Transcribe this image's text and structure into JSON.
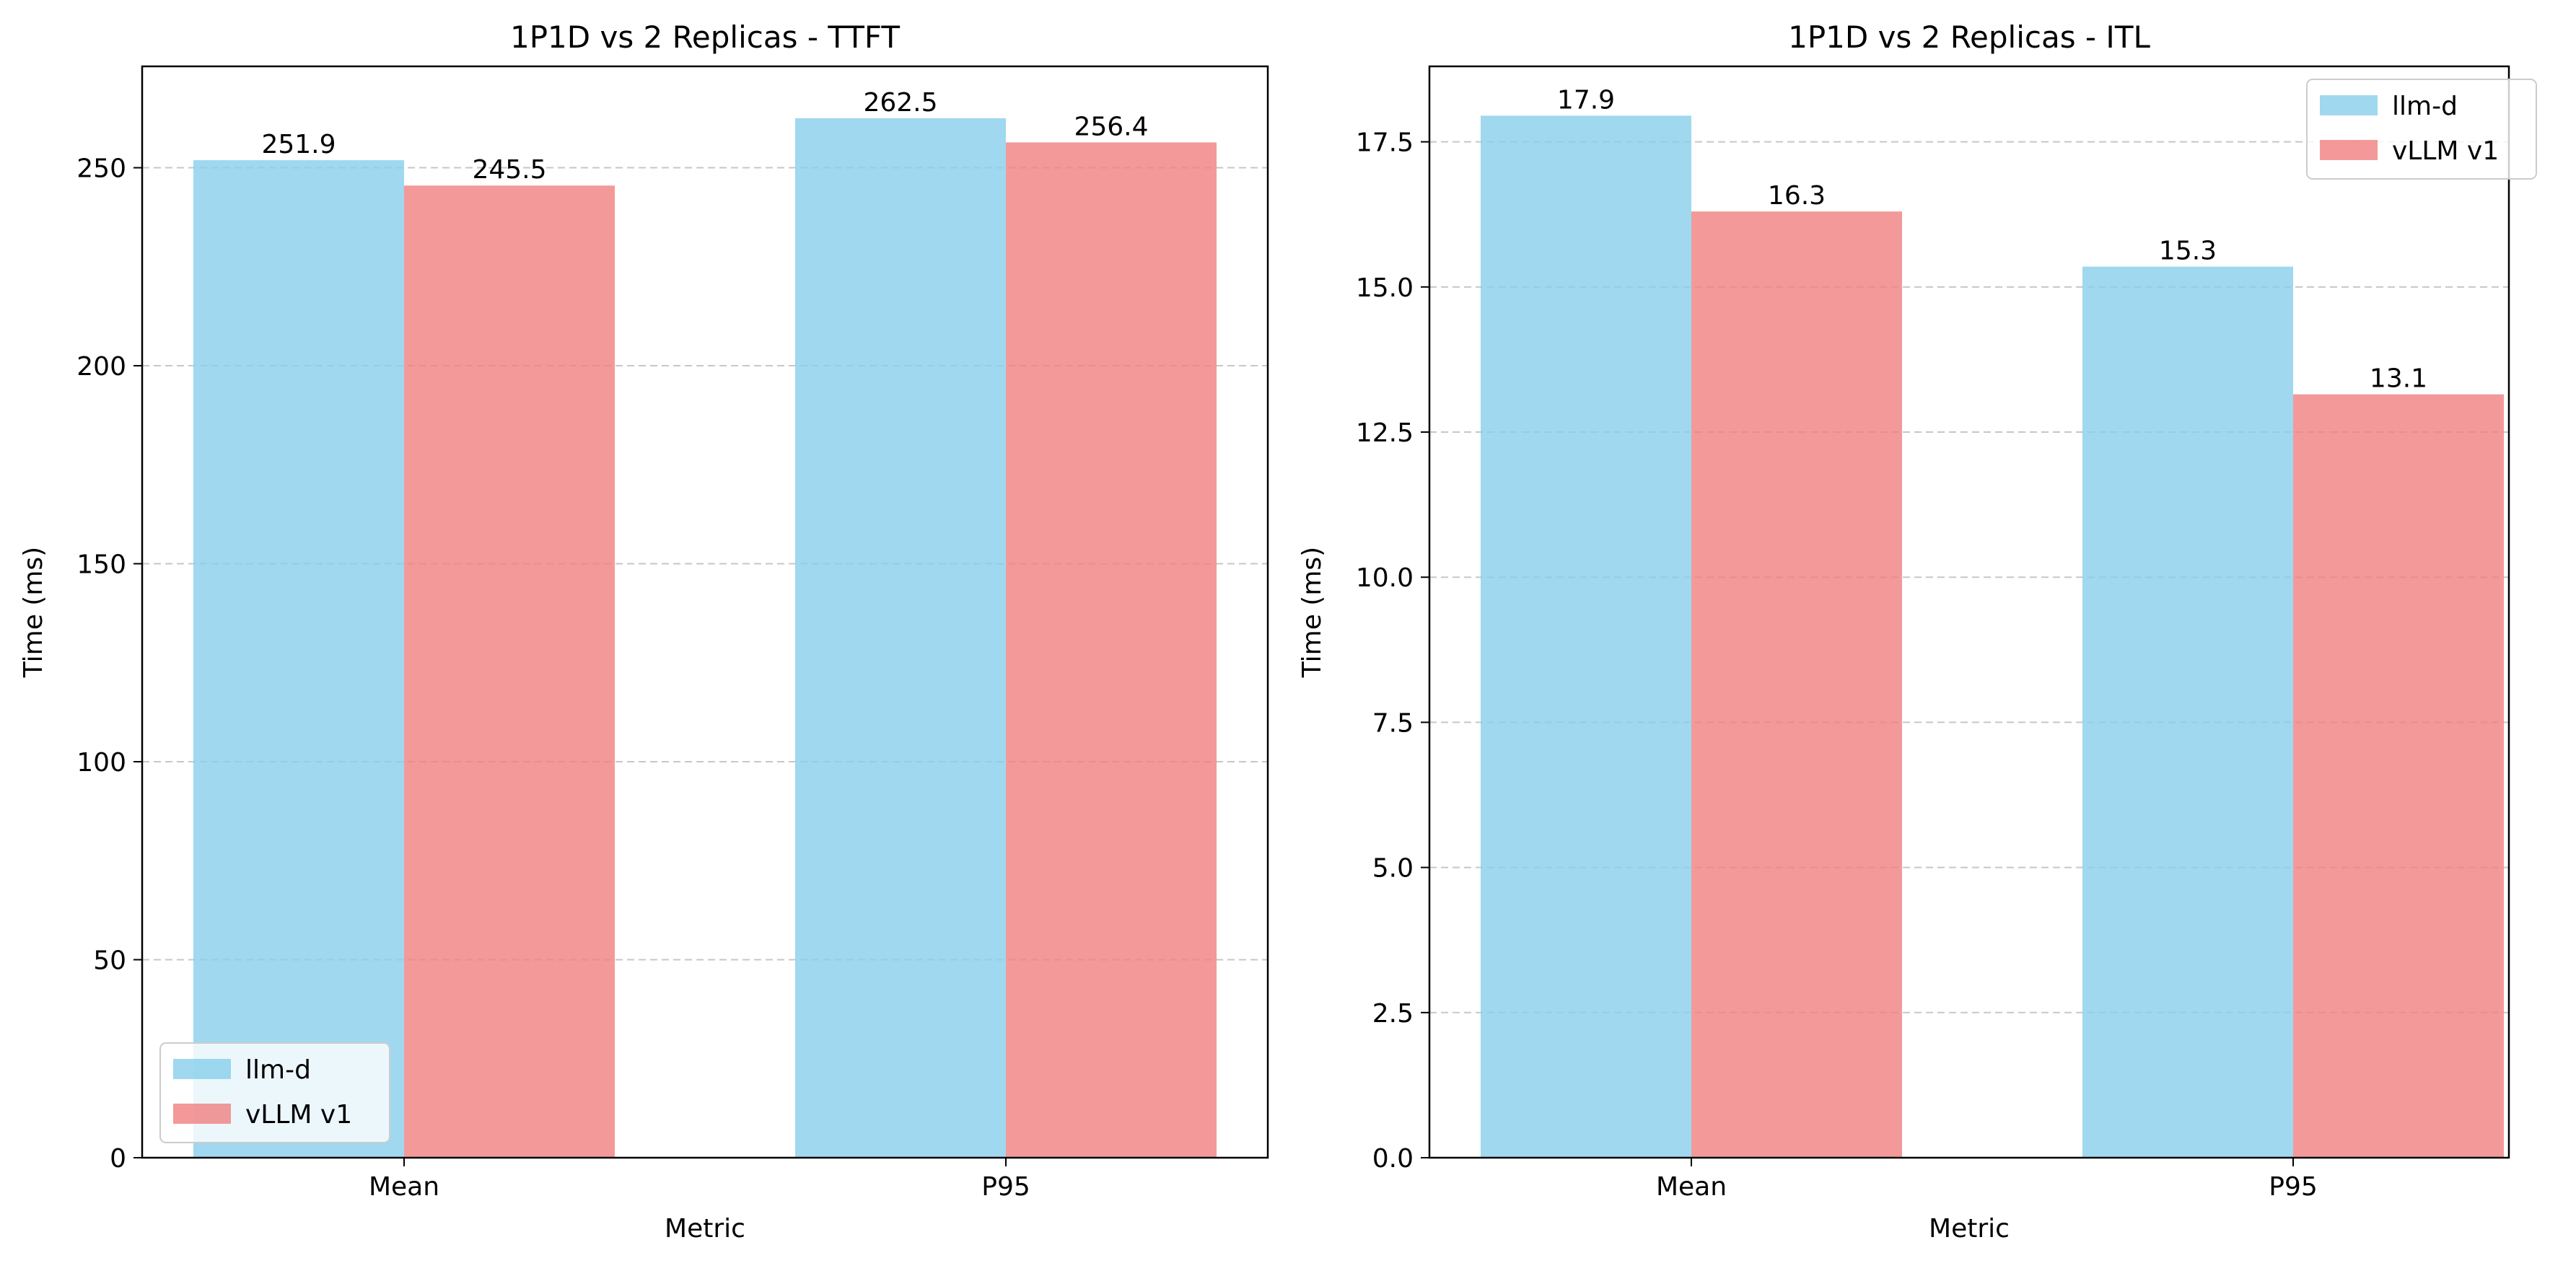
{
  "chart_data": [
    {
      "type": "bar",
      "title": "1P1D vs 2 Replicas - TTFT",
      "xlabel": "Metric",
      "ylabel": "Time (ms)",
      "categories": [
        "Mean",
        "P95"
      ],
      "series": [
        {
          "name": "llm-d",
          "values": [
            251.9,
            262.5
          ],
          "labels": [
            "251.9",
            "262.5"
          ],
          "color": "#87ceeb"
        },
        {
          "name": "vLLM v1",
          "values": [
            245.5,
            256.4
          ],
          "labels": [
            "245.5",
            "256.4"
          ],
          "color": "#f08080"
        }
      ],
      "ylim": [
        0,
        275.6
      ],
      "yticks": [
        0,
        50,
        100,
        150,
        200,
        250
      ],
      "ytick_labels": [
        "0",
        "50",
        "100",
        "150",
        "200",
        "250"
      ],
      "grid": "y-dashed",
      "legend_position": "lower-left"
    },
    {
      "type": "bar",
      "title": "1P1D vs 2 Replicas - ITL",
      "xlabel": "Metric",
      "ylabel": "Time (ms)",
      "categories": [
        "Mean",
        "P95"
      ],
      "series": [
        {
          "name": "llm-d",
          "values": [
            17.95,
            15.35
          ],
          "labels": [
            "17.9",
            "15.3"
          ],
          "color": "#87ceeb"
        },
        {
          "name": "vLLM v1",
          "values": [
            16.3,
            13.15
          ],
          "labels": [
            "16.3",
            "13.1"
          ],
          "color": "#f08080"
        }
      ],
      "ylim": [
        0,
        18.8
      ],
      "yticks": [
        0,
        2.5,
        5,
        7.5,
        10,
        12.5,
        15,
        17.5
      ],
      "ytick_labels": [
        "0.0",
        "2.5",
        "5.0",
        "7.5",
        "10.0",
        "12.5",
        "15.0",
        "17.5"
      ],
      "grid": "y-dashed",
      "legend_position": "upper-right"
    }
  ]
}
